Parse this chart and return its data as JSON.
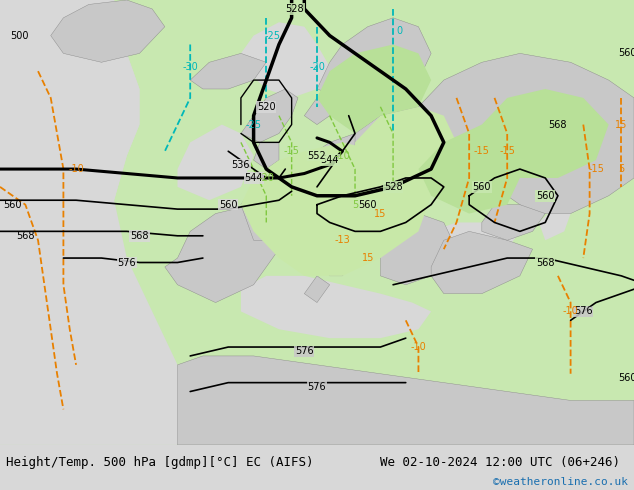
{
  "title_left": "Height/Temp. 500 hPa [gdmp][°C] EC (AIFS)",
  "title_right": "We 02-10-2024 12:00 UTC (06+246)",
  "copyright": "©weatheronline.co.uk",
  "bg_color": "#e8f0e8",
  "land_color": "#c8c8c8",
  "sea_color": "#d8d8d8",
  "green_land": "#c8e8b0",
  "bottom_bar_color": "#d8d8d8",
  "text_color": "#000000",
  "copyright_color": "#1a6faf",
  "hgt_color": "#000000",
  "tmp_neg_color": "#00b8b8",
  "tmp_pos_color": "#e88000",
  "tmp_grn_color": "#80c840",
  "title_fontsize": 9,
  "copyright_fontsize": 8,
  "label_fs": 7
}
